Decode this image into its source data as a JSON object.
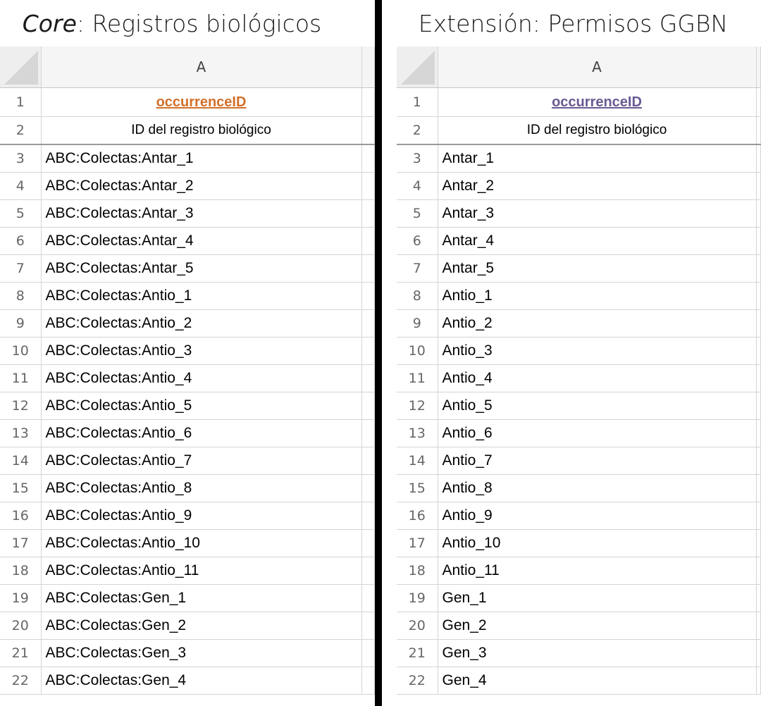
{
  "left": {
    "title_italic": "Core",
    "title_rest": ": Registros biológicos",
    "column_header": "A",
    "header_field": "occurrenceID",
    "header_field_color": "#d2702a",
    "header_label": "ID del registro biológico",
    "rows": [
      {
        "num": "1"
      },
      {
        "num": "2"
      },
      {
        "num": "3",
        "value": "ABC:Colectas:Antar_1"
      },
      {
        "num": "4",
        "value": "ABC:Colectas:Antar_2"
      },
      {
        "num": "5",
        "value": "ABC:Colectas:Antar_3"
      },
      {
        "num": "6",
        "value": "ABC:Colectas:Antar_4"
      },
      {
        "num": "7",
        "value": "ABC:Colectas:Antar_5"
      },
      {
        "num": "8",
        "value": "ABC:Colectas:Antio_1"
      },
      {
        "num": "9",
        "value": "ABC:Colectas:Antio_2"
      },
      {
        "num": "10",
        "value": "ABC:Colectas:Antio_3"
      },
      {
        "num": "11",
        "value": "ABC:Colectas:Antio_4"
      },
      {
        "num": "12",
        "value": "ABC:Colectas:Antio_5"
      },
      {
        "num": "13",
        "value": "ABC:Colectas:Antio_6"
      },
      {
        "num": "14",
        "value": "ABC:Colectas:Antio_7"
      },
      {
        "num": "15",
        "value": "ABC:Colectas:Antio_8"
      },
      {
        "num": "16",
        "value": "ABC:Colectas:Antio_9"
      },
      {
        "num": "17",
        "value": "ABC:Colectas:Antio_10"
      },
      {
        "num": "18",
        "value": "ABC:Colectas:Antio_11"
      },
      {
        "num": "19",
        "value": "ABC:Colectas:Gen_1"
      },
      {
        "num": "20",
        "value": "ABC:Colectas:Gen_2"
      },
      {
        "num": "21",
        "value": "ABC:Colectas:Gen_3"
      },
      {
        "num": "22",
        "value": "ABC:Colectas:Gen_4"
      }
    ]
  },
  "right": {
    "title": "Extensión: Permisos GGBN",
    "column_header": "A",
    "header_field": "occurrenceID",
    "header_field_color": "#6a5a92",
    "header_label": "ID del registro biológico",
    "rows": [
      {
        "num": "1"
      },
      {
        "num": "2"
      },
      {
        "num": "3",
        "value": "Antar_1"
      },
      {
        "num": "4",
        "value": "Antar_2"
      },
      {
        "num": "5",
        "value": "Antar_3"
      },
      {
        "num": "6",
        "value": "Antar_4"
      },
      {
        "num": "7",
        "value": "Antar_5"
      },
      {
        "num": "8",
        "value": "Antio_1"
      },
      {
        "num": "9",
        "value": "Antio_2"
      },
      {
        "num": "10",
        "value": "Antio_3"
      },
      {
        "num": "11",
        "value": "Antio_4"
      },
      {
        "num": "12",
        "value": "Antio_5"
      },
      {
        "num": "13",
        "value": "Antio_6"
      },
      {
        "num": "14",
        "value": "Antio_7"
      },
      {
        "num": "15",
        "value": "Antio_8"
      },
      {
        "num": "16",
        "value": "Antio_9"
      },
      {
        "num": "17",
        "value": "Antio_10"
      },
      {
        "num": "18",
        "value": "Antio_11"
      },
      {
        "num": "19",
        "value": "Gen_1"
      },
      {
        "num": "20",
        "value": "Gen_2"
      },
      {
        "num": "21",
        "value": "Gen_3"
      },
      {
        "num": "22",
        "value": "Gen_4"
      }
    ]
  }
}
